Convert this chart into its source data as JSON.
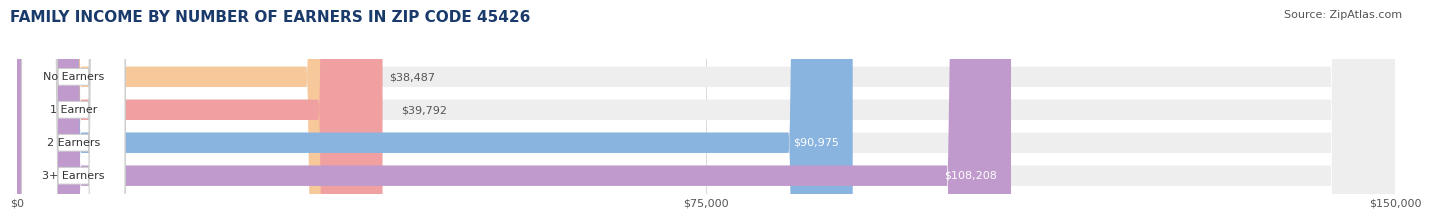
{
  "title": "FAMILY INCOME BY NUMBER OF EARNERS IN ZIP CODE 45426",
  "source": "Source: ZipAtlas.com",
  "categories": [
    "No Earners",
    "1 Earner",
    "2 Earners",
    "3+ Earners"
  ],
  "values": [
    38487,
    39792,
    90975,
    108208
  ],
  "value_labels": [
    "$38,487",
    "$39,792",
    "$90,975",
    "$108,208"
  ],
  "bar_colors": [
    "#f7c99a",
    "#f0a0a0",
    "#8ab4e0",
    "#c09acc"
  ],
  "bar_bg_color": "#eeeeee",
  "label_bg_color": "#ffffff",
  "label_border_color": "#cccccc",
  "x_max": 150000,
  "x_ticks": [
    0,
    75000,
    150000
  ],
  "x_tick_labels": [
    "$0",
    "$75,000",
    "$150,000"
  ],
  "title_fontsize": 11,
  "source_fontsize": 8,
  "bar_label_fontsize": 8,
  "tick_fontsize": 8,
  "background_color": "#ffffff",
  "title_color": "#1a3a6b",
  "source_color": "#555555"
}
